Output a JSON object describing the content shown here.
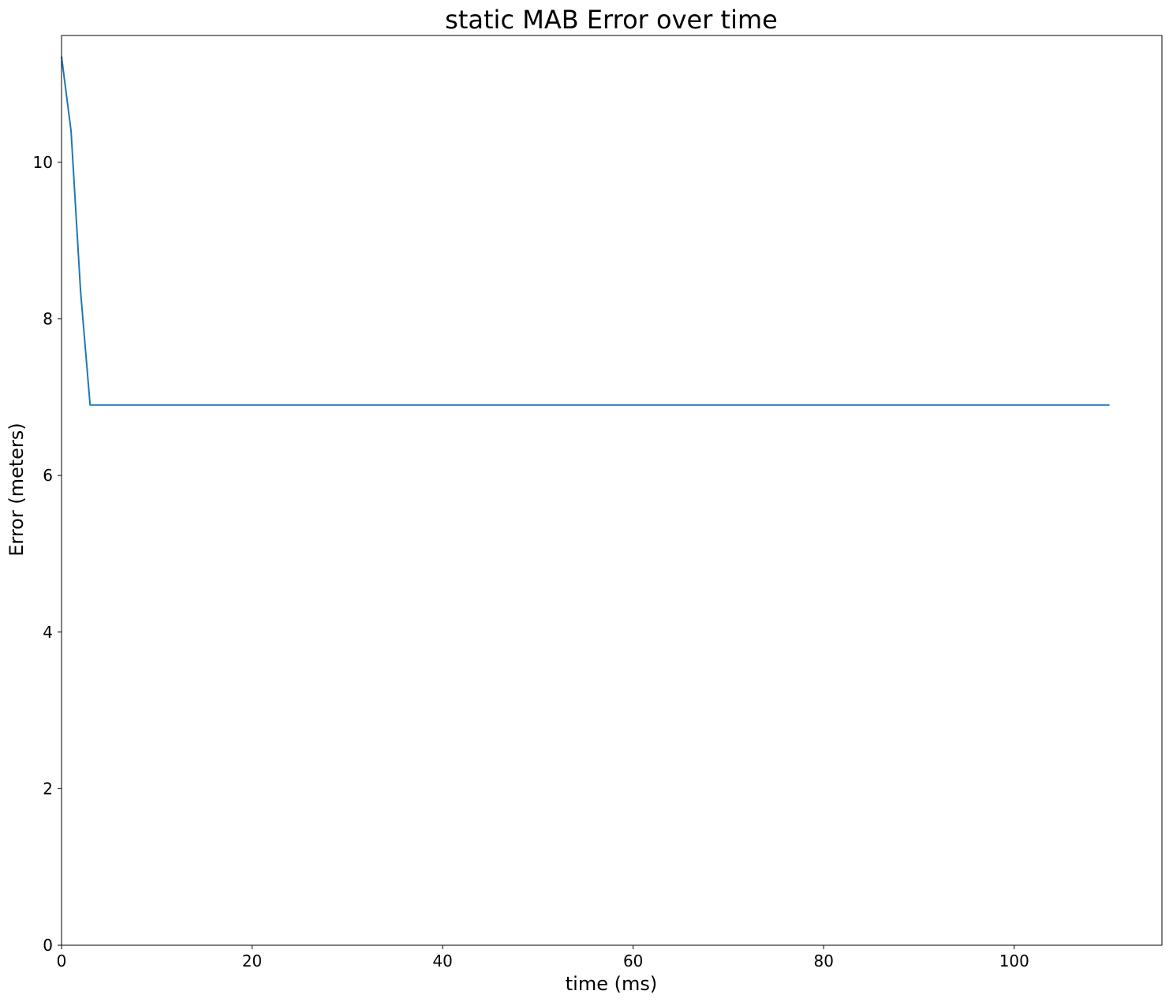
{
  "chart_data": {
    "type": "line",
    "title": "static MAB Error over time",
    "xlabel": "time (ms)",
    "ylabel": "Error (meters)",
    "xlim": [
      0,
      115.5
    ],
    "ylim": [
      0,
      11.62
    ],
    "xticks": [
      0,
      20,
      40,
      60,
      80,
      100
    ],
    "yticks": [
      0,
      2,
      4,
      6,
      8,
      10
    ],
    "grid": false,
    "legend": "none",
    "series": [
      {
        "color": "#1f77b4",
        "x": [
          0,
          1,
          2,
          3,
          4,
          5,
          10,
          20,
          30,
          40,
          50,
          60,
          70,
          80,
          90,
          100,
          110
        ],
        "y": [
          11.35,
          10.4,
          8.35,
          6.9,
          6.9,
          6.9,
          6.9,
          6.9,
          6.9,
          6.9,
          6.9,
          6.9,
          6.9,
          6.9,
          6.9,
          6.9,
          6.9
        ]
      }
    ]
  }
}
